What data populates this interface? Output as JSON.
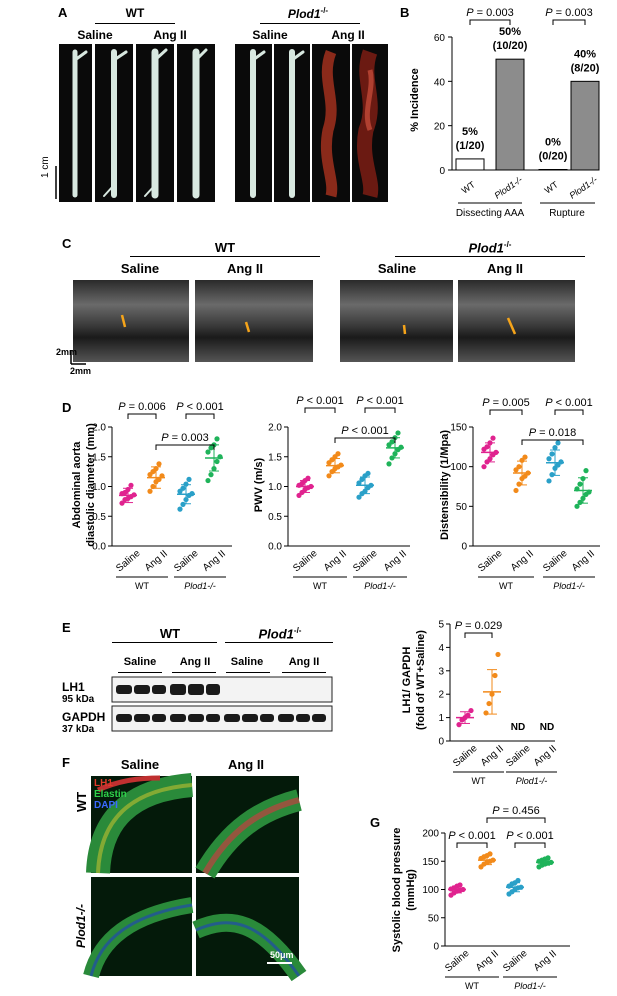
{
  "panelA": {
    "letter": "A",
    "wt": "WT",
    "ko": "Plod1",
    "ko_sup": "-/-",
    "saline": "Saline",
    "angii": "Ang II",
    "scale": "1 cm"
  },
  "panelB": {
    "letter": "B",
    "p1": "P = 0.003",
    "p2": "P = 0.003",
    "ylabel": "% Incidence",
    "group1": "Dissecting AAA",
    "group2": "Rupture",
    "bar_labels": [
      {
        "pct": "5%",
        "n": "(1/20)"
      },
      {
        "pct": "50%",
        "n": "(10/20)"
      },
      {
        "pct": "0%",
        "n": "(0/20)"
      },
      {
        "pct": "40%",
        "n": "(8/20)"
      }
    ],
    "xticks": [
      "WT",
      "Plod1-/-",
      "WT",
      "Plod1-/-"
    ]
  },
  "panelC": {
    "letter": "C",
    "wt": "WT",
    "ko": "Plod1",
    "ko_sup": "-/-",
    "saline": "Saline",
    "angii": "Ang II",
    "scale1": "2mm",
    "scale2": "2mm"
  },
  "panelD": {
    "letter": "D",
    "d1": {
      "ylabel1": "Abdominal aorta",
      "ylabel2": "diastolic diameter (mm)",
      "p1": "P = 0.006",
      "p2": "P < 0.001",
      "p3": "P = 0.003"
    },
    "d2": {
      "ylabel": "PWV (m/s)",
      "p1": "P < 0.001",
      "p2": "P < 0.001",
      "p3": "P < 0.001"
    },
    "d3": {
      "ylabel": "Distensibility (1/Mpa)",
      "p1": "P = 0.005",
      "p2": "P < 0.001",
      "p3": "P = 0.018"
    },
    "x": [
      "Saline",
      "Ang II",
      "Saline",
      "Ang II"
    ],
    "wt": "WT",
    "ko": "Plod1-/-"
  },
  "panelE": {
    "letter": "E",
    "wt": "WT",
    "ko": "Plod1",
    "ko_sup": "-/-",
    "saline": "Saline",
    "angii": "Ang II",
    "lh1": "LH1",
    "lh1_kda": "95 kDa",
    "gapdh": "GAPDH",
    "gapdh_kda": "37 kDa",
    "ylabel1": "LH1/ GAPDH",
    "ylabel2": "(fold of WT+Saline)",
    "p1": "P = 0.029",
    "nd": "ND",
    "x": [
      "Saline",
      "Ang II",
      "Saline",
      "Ang II"
    ],
    "wt_group": "WT",
    "ko_group": "Plod1-/-"
  },
  "panelF": {
    "letter": "F",
    "saline": "Saline",
    "angii": "Ang II",
    "wt": "WT",
    "ko": "Plod1-/-",
    "lh1": "LH1",
    "elastin": "Elastin",
    "dapi": "DAPI",
    "scale": "50μm"
  },
  "panelG": {
    "letter": "G",
    "ylabel1": "Systolic blood pressure",
    "ylabel2": "(mmHg)",
    "p1": "P < 0.001",
    "p2": "P < 0.001",
    "p3": "P = 0.456",
    "x": [
      "Saline",
      "Ang II",
      "Saline",
      "Ang II"
    ],
    "wt": "WT",
    "ko": "Plod1-/-"
  },
  "chart_data": [
    {
      "type": "bar",
      "panel": "B",
      "ylabel": "% Incidence",
      "ylim": [
        0,
        60
      ],
      "yticks": [
        0,
        20,
        40,
        60
      ],
      "categories": [
        "WT",
        "Plod1-/-",
        "WT",
        "Plod1-/-"
      ],
      "groups": [
        "Dissecting AAA",
        "Rupture"
      ],
      "values": [
        5,
        50,
        0,
        40
      ],
      "colors": [
        "#ffffff",
        "#8c8c8c",
        "#ffffff",
        "#8c8c8c"
      ]
    },
    {
      "type": "scatter",
      "panel": "D1",
      "ylabel": "Abdominal aorta diastolic diameter (mm)",
      "ylim": [
        0,
        2.0
      ],
      "yticks": [
        0.0,
        0.5,
        1.0,
        1.5,
        2.0
      ],
      "categories": [
        "Saline",
        "Ang II",
        "Saline",
        "Ang II"
      ],
      "colors": [
        "#e0238f",
        "#f28a1a",
        "#2aa0c8",
        "#1fb35a"
      ],
      "means": [
        0.85,
        1.15,
        0.87,
        1.48
      ],
      "sd": [
        0.12,
        0.18,
        0.16,
        0.22
      ],
      "points": [
        [
          0.72,
          0.78,
          0.8,
          0.83,
          0.86,
          0.88,
          0.9,
          0.95,
          1.02
        ],
        [
          0.92,
          1.0,
          1.08,
          1.12,
          1.18,
          1.2,
          1.25,
          1.3,
          1.38
        ],
        [
          0.62,
          0.7,
          0.78,
          0.85,
          0.88,
          0.92,
          0.97,
          1.04,
          1.12
        ],
        [
          1.1,
          1.2,
          1.3,
          1.42,
          1.5,
          1.58,
          1.65,
          1.7,
          1.8
        ]
      ]
    },
    {
      "type": "scatter",
      "panel": "D2",
      "ylabel": "PWV (m/s)",
      "ylim": [
        0,
        2.0
      ],
      "yticks": [
        0.0,
        0.5,
        1.0,
        1.5,
        2.0
      ],
      "categories": [
        "Saline",
        "Ang II",
        "Saline",
        "Ang II"
      ],
      "colors": [
        "#e0238f",
        "#f28a1a",
        "#2aa0c8",
        "#1fb35a"
      ],
      "means": [
        1.0,
        1.35,
        1.02,
        1.65
      ],
      "sd": [
        0.1,
        0.12,
        0.14,
        0.17
      ],
      "points": [
        [
          0.85,
          0.9,
          0.95,
          0.98,
          1.0,
          1.02,
          1.05,
          1.1,
          1.14
        ],
        [
          1.18,
          1.25,
          1.3,
          1.33,
          1.36,
          1.4,
          1.45,
          1.5,
          1.55
        ],
        [
          0.82,
          0.88,
          0.92,
          0.98,
          1.02,
          1.06,
          1.12,
          1.18,
          1.22
        ],
        [
          1.38,
          1.48,
          1.55,
          1.62,
          1.66,
          1.7,
          1.75,
          1.82,
          1.9
        ]
      ]
    },
    {
      "type": "scatter",
      "panel": "D3",
      "ylabel": "Distensibility (1/Mpa)",
      "ylim": [
        0,
        150
      ],
      "yticks": [
        0,
        50,
        100,
        150
      ],
      "categories": [
        "Saline",
        "Ang II",
        "Saline",
        "Ang II"
      ],
      "colors": [
        "#e0238f",
        "#f28a1a",
        "#2aa0c8",
        "#1fb35a"
      ],
      "means": [
        118,
        92,
        105,
        70
      ],
      "sd": [
        12,
        15,
        16,
        16
      ],
      "points": [
        [
          100,
          106,
          110,
          115,
          118,
          122,
          125,
          130,
          136
        ],
        [
          70,
          78,
          85,
          88,
          92,
          96,
          100,
          108,
          112
        ],
        [
          82,
          90,
          98,
          102,
          106,
          110,
          116,
          124,
          130
        ],
        [
          50,
          55,
          60,
          65,
          68,
          72,
          78,
          85,
          95
        ]
      ]
    },
    {
      "type": "scatter",
      "panel": "E",
      "ylabel": "LH1/ GAPDH (fold of WT+Saline)",
      "ylim": [
        0,
        5
      ],
      "yticks": [
        0,
        1,
        2,
        3,
        4,
        5
      ],
      "categories": [
        "Saline",
        "Ang II",
        "Saline",
        "Ang II"
      ],
      "colors": [
        "#e0238f",
        "#f28a1a",
        "#2aa0c8",
        "#1fb35a"
      ],
      "means": [
        1.0,
        2.1,
        null,
        null
      ],
      "sd": [
        0.25,
        0.95,
        null,
        null
      ],
      "points": [
        [
          0.7,
          0.9,
          1.0,
          1.1,
          1.3
        ],
        [
          1.2,
          1.6,
          2.0,
          2.8,
          3.7
        ],
        [],
        []
      ]
    },
    {
      "type": "scatter",
      "panel": "G",
      "ylabel": "Systolic blood pressure (mmHg)",
      "ylim": [
        0,
        200
      ],
      "yticks": [
        0,
        50,
        100,
        150,
        200
      ],
      "categories": [
        "Saline",
        "Ang II",
        "Saline",
        "Ang II"
      ],
      "colors": [
        "#e0238f",
        "#f28a1a",
        "#2aa0c8",
        "#1fb35a"
      ],
      "means": [
        100,
        152,
        104,
        148
      ],
      "sd": [
        6,
        8,
        8,
        5
      ],
      "points": [
        [
          90,
          94,
          97,
          99,
          100,
          101,
          103,
          106,
          108
        ],
        [
          140,
          145,
          148,
          150,
          152,
          155,
          158,
          160,
          163
        ],
        [
          92,
          96,
          100,
          103,
          104,
          106,
          110,
          112,
          116
        ],
        [
          140,
          143,
          145,
          147,
          148,
          150,
          152,
          154,
          156
        ]
      ]
    }
  ]
}
